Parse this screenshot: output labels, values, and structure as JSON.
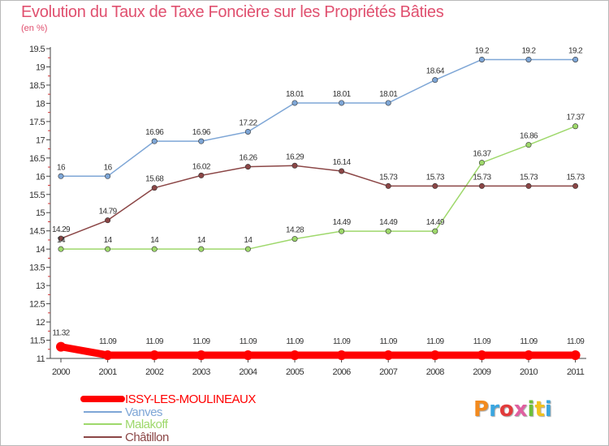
{
  "header": {
    "title": "Evolution du Taux de Taxe Foncière sur les Propriétés Bâties",
    "subtitle": "(en %)"
  },
  "brand": {
    "name": "Proxiti",
    "colors": [
      "#f28a1e",
      "#3aa6e0",
      "#e23b3b",
      "#e05fa0",
      "#6cbf3a",
      "#f2c21e",
      "#3aa6e0"
    ]
  },
  "chart_data": {
    "type": "line",
    "title": "Evolution du Taux de Taxe Foncière sur les Propriétés Bâties",
    "subtitle": "(en %)",
    "xlabel": "",
    "ylabel": "",
    "x": [
      "2000",
      "2001",
      "2002",
      "2003",
      "2004",
      "2005",
      "2006",
      "2007",
      "2008",
      "2009",
      "2010",
      "2011"
    ],
    "yticks": [
      "11",
      "11.5",
      "12",
      "12.5",
      "13",
      "13.5",
      "14",
      "14.5",
      "15",
      "15.5",
      "16",
      "16.5",
      "17",
      "17.5",
      "18",
      "18.5",
      "19",
      "19.5"
    ],
    "ylim": [
      11,
      19.5
    ],
    "grid": false,
    "legend": "bottom-left",
    "series": [
      {
        "name": "ISSY-LES-MOULINEAUX",
        "color": "#ff0000",
        "values": [
          11.32,
          11.09,
          11.09,
          11.09,
          11.09,
          11.09,
          11.09,
          11.09,
          11.09,
          11.09,
          11.09,
          11.09
        ],
        "labels": [
          "11.32",
          "11.09",
          "11.09",
          "11.09",
          "11.09",
          "11.09",
          "11.09",
          "11.09",
          "11.09",
          "11.09",
          "11.09",
          "11.09"
        ]
      },
      {
        "name": "Vanves",
        "color": "#7ea6d6",
        "values": [
          16,
          16,
          16.96,
          16.96,
          17.22,
          18.01,
          18.01,
          18.01,
          18.64,
          19.2,
          19.2,
          19.2
        ],
        "labels": [
          "16",
          "16",
          "16.96",
          "16.96",
          "17.22",
          "18.01",
          "18.01",
          "18.01",
          "18.64",
          "19.2",
          "19.2",
          "19.2"
        ]
      },
      {
        "name": "Malakoff",
        "color": "#9ed86b",
        "values": [
          14,
          14,
          14,
          14,
          14,
          14.28,
          14.49,
          14.49,
          14.49,
          16.37,
          16.86,
          17.37
        ],
        "labels": [
          "14",
          "14",
          "14",
          "14",
          "14",
          "14.28",
          "14.49",
          "14.49",
          "14.49",
          "16.37",
          "16.86",
          "17.37"
        ]
      },
      {
        "name": "Châtillon",
        "color": "#8b4646",
        "values": [
          14.29,
          14.79,
          15.68,
          16.02,
          16.26,
          16.29,
          16.14,
          15.73,
          15.73,
          15.73,
          15.73,
          15.73
        ],
        "labels": [
          "14.29",
          "14.79",
          "15.68",
          "16.02",
          "16.26",
          "16.29",
          "16.14",
          "15.73",
          "15.73",
          "15.73",
          "15.73",
          "15.73"
        ]
      }
    ]
  }
}
